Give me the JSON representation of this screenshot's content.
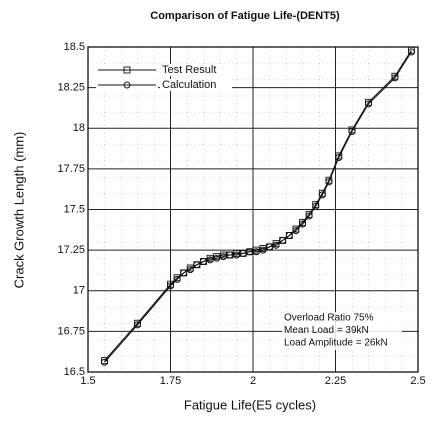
{
  "chart_data": {
    "type": "line",
    "title": "Comparison of Fatigue Life-(DENT5)",
    "xlabel": "Fatigue Life(E5 cycles)",
    "ylabel": "Crack Growth Length (mm)",
    "x": [
      1.55,
      1.65,
      1.75,
      1.77,
      1.79,
      1.81,
      1.83,
      1.85,
      1.87,
      1.89,
      1.91,
      1.93,
      1.95,
      1.97,
      1.99,
      2.01,
      2.03,
      2.05,
      2.07,
      2.09,
      2.11,
      2.13,
      2.15,
      2.17,
      2.19,
      2.21,
      2.23,
      2.26,
      2.3,
      2.35,
      2.43,
      2.48
    ],
    "series": [
      {
        "name": "Test Result",
        "color": "#111111",
        "marker": "square",
        "values": [
          16.57,
          16.8,
          17.04,
          17.08,
          17.11,
          17.14,
          17.16,
          17.18,
          17.2,
          17.21,
          17.22,
          17.22,
          17.23,
          17.23,
          17.24,
          17.25,
          17.26,
          17.27,
          17.29,
          17.31,
          17.34,
          17.38,
          17.42,
          17.47,
          17.53,
          17.6,
          17.68,
          17.83,
          17.99,
          18.16,
          18.32,
          18.48
        ]
      },
      {
        "name": "Calculation",
        "color": "#111111",
        "marker": "circle",
        "values": [
          16.56,
          16.79,
          17.03,
          17.07,
          17.11,
          17.13,
          17.16,
          17.18,
          17.19,
          17.2,
          17.21,
          17.22,
          17.22,
          17.23,
          17.24,
          17.24,
          17.25,
          17.27,
          17.28,
          17.31,
          17.34,
          17.37,
          17.41,
          17.46,
          17.52,
          17.59,
          17.67,
          17.82,
          17.98,
          18.15,
          18.31,
          18.47
        ]
      }
    ],
    "annotations": [
      "Overload Ratio 75%",
      "Mean Load = 39kN",
      "Load Amplitude = 26kN"
    ],
    "xlim": [
      1.5,
      2.5
    ],
    "xticks": [
      1.5,
      1.75,
      2,
      2.25,
      2.5
    ],
    "ylim": [
      16.5,
      18.5
    ],
    "yticks": [
      16.5,
      16.75,
      17,
      17.25,
      17.5,
      17.75,
      18,
      18.25,
      18.5
    ],
    "grid": true,
    "legend": "upper left"
  }
}
